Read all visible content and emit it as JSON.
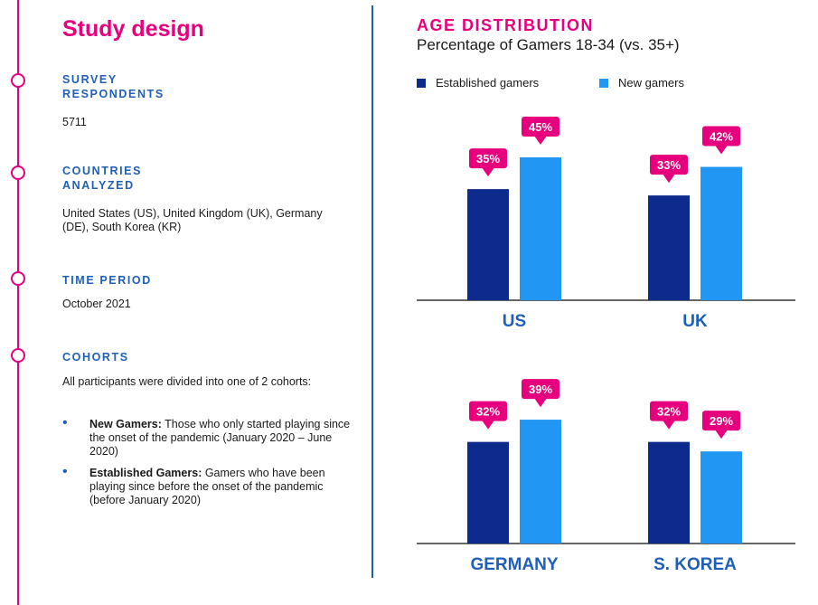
{
  "study": {
    "title": "Study design",
    "sections": [
      {
        "heading": "SURVEY RESPONDENTS",
        "body": "5711"
      },
      {
        "heading": "COUNTRIES ANALYZED",
        "body": "United States (US), United Kingdom (UK), Germany (DE), South Korea (KR)"
      },
      {
        "heading": "TIME PERIOD",
        "body": "October 2021"
      },
      {
        "heading": "COHORTS",
        "body": "All participants were divided into one of 2 cohorts:"
      }
    ],
    "bullets": [
      {
        "label": "New Gamers:",
        "text": " Those who only started playing since the onset of the pandemic (January 2020 – June 2020)"
      },
      {
        "label": "Established Gamers:",
        "text": " Gamers who have been playing since before the onset of the pandemic (before January 2020)"
      }
    ]
  },
  "colors": {
    "accent": "#e6007e",
    "established": "#0d2b8c",
    "new": "#2196f3",
    "heading_blue": "#1f5fb8"
  },
  "chart_data": {
    "type": "bar",
    "title": "AGE DISTRIBUTION",
    "subtitle": "Percentage of Gamers 18-34 (vs. 35+)",
    "categories": [
      "US",
      "UK",
      "GERMANY",
      "S. KOREA"
    ],
    "series": [
      {
        "name": "Established gamers",
        "values": [
          35,
          33,
          32,
          32
        ],
        "labels": [
          "35%",
          "33%",
          "32%",
          "32%"
        ]
      },
      {
        "name": "New gamers",
        "values": [
          45,
          42,
          39,
          29
        ],
        "labels": [
          "45%",
          "42%",
          "39%",
          "29%"
        ]
      }
    ],
    "legend": "top-left",
    "grid": false
  }
}
